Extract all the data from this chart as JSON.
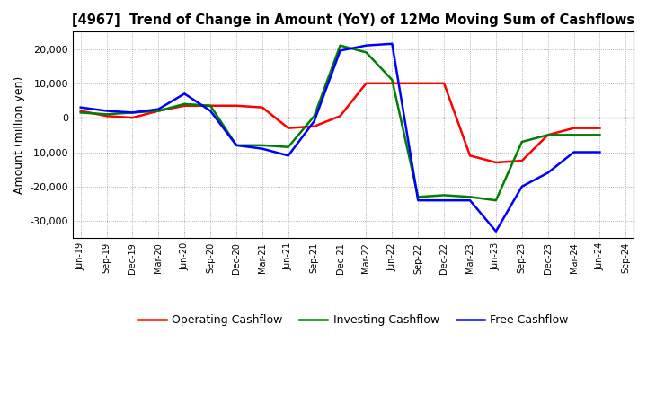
{
  "title": "[4967]  Trend of Change in Amount (YoY) of 12Mo Moving Sum of Cashflows",
  "ylabel": "Amount (million yen)",
  "x_labels": [
    "Jun-19",
    "Sep-19",
    "Dec-19",
    "Mar-20",
    "Jun-20",
    "Sep-20",
    "Dec-20",
    "Mar-21",
    "Jun-21",
    "Sep-21",
    "Dec-21",
    "Mar-22",
    "Jun-22",
    "Sep-22",
    "Dec-22",
    "Mar-23",
    "Jun-23",
    "Sep-23",
    "Dec-23",
    "Mar-24",
    "Jun-24",
    "Sep-24"
  ],
  "operating_cashflow": [
    2000,
    500,
    0,
    2000,
    3500,
    3500,
    3500,
    3000,
    -3000,
    -2500,
    500,
    10000,
    10000,
    10000,
    10000,
    -11000,
    -13000,
    -12500,
    -5000,
    -3000,
    -3000,
    null
  ],
  "investing_cashflow": [
    1500,
    1000,
    1500,
    2000,
    4000,
    3500,
    -8000,
    -8000,
    -8500,
    500,
    21000,
    19000,
    11000,
    -23000,
    -22500,
    -23000,
    -24000,
    -7000,
    -5000,
    -5000,
    -5000,
    null
  ],
  "free_cashflow": [
    3000,
    2000,
    1500,
    2500,
    7000,
    2000,
    -8000,
    -9000,
    -11000,
    -1000,
    19500,
    21000,
    21500,
    -24000,
    -24000,
    -24000,
    -33000,
    -20000,
    -16000,
    -10000,
    -10000,
    null
  ],
  "operating_color": "#ff0000",
  "investing_color": "#008000",
  "free_color": "#0000ff",
  "ylim": [
    -35000,
    25000
  ],
  "yticks": [
    -30000,
    -20000,
    -10000,
    0,
    10000,
    20000
  ],
  "background_color": "#ffffff",
  "grid_color": "#999999",
  "line_width": 1.8
}
